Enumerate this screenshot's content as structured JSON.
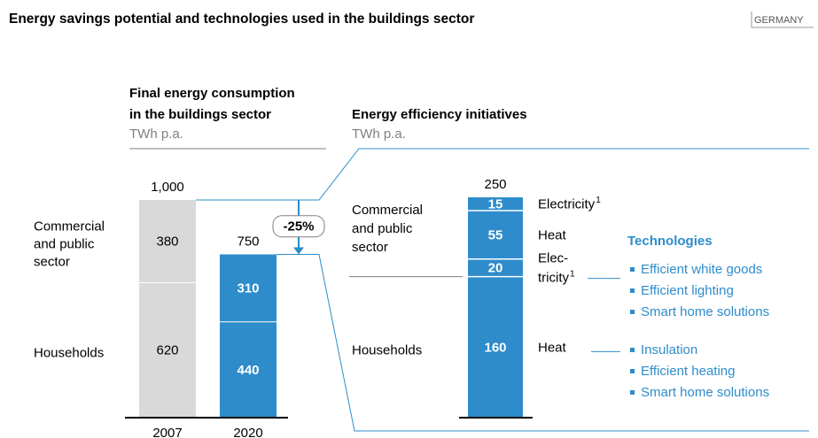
{
  "header": {
    "title": "Energy savings potential and technologies used in the buildings sector",
    "region": "GERMANY"
  },
  "chart_data": [
    {
      "type": "bar",
      "stacked": true,
      "title": [
        "Final energy consumption",
        "in the buildings sector"
      ],
      "subtitle": "TWh p.a.",
      "categories": [
        "2007",
        "2020"
      ],
      "colors": [
        "#d9d9d9",
        "#2e8ccb"
      ],
      "series": [
        {
          "name": [
            "Households"
          ],
          "values": [
            620,
            440
          ]
        },
        {
          "name": [
            "Commercial",
            "and public",
            "sector"
          ],
          "values": [
            380,
            310
          ]
        }
      ],
      "totals": [
        {
          "value": 1000,
          "label": "1,000"
        },
        750
      ],
      "change": {
        "value": -25,
        "label": "-25%"
      },
      "ylim": [
        0,
        1000
      ]
    },
    {
      "type": "bar",
      "stacked": true,
      "title": [
        "Energy efficiency initiatives"
      ],
      "subtitle": "TWh p.a.",
      "color": "#2e8ccb",
      "total": 250,
      "ylim": [
        0,
        250
      ],
      "technologies_title": "Technologies",
      "groups": [
        {
          "name": [
            "Households"
          ],
          "series": [
            {
              "name": [
                "Heat"
              ],
              "values": [
                160
              ],
              "technologies": [
                "Insulation",
                "Efficient heating",
                "Smart home solutions"
              ]
            }
          ]
        },
        {
          "name": [
            "Commercial",
            "and public",
            "sector"
          ],
          "series": [
            {
              "name": [
                "Elec-",
                "tricity"
              ],
              "note": "1",
              "values": [
                20
              ],
              "technologies": [
                "Efficient white goods",
                "Efficient lighting",
                "Smart home solutions"
              ]
            },
            {
              "name": [
                "Heat"
              ],
              "values": [
                55
              ]
            },
            {
              "name": [
                "Electricity"
              ],
              "note": "1",
              "values": [
                15
              ]
            }
          ]
        }
      ]
    }
  ]
}
